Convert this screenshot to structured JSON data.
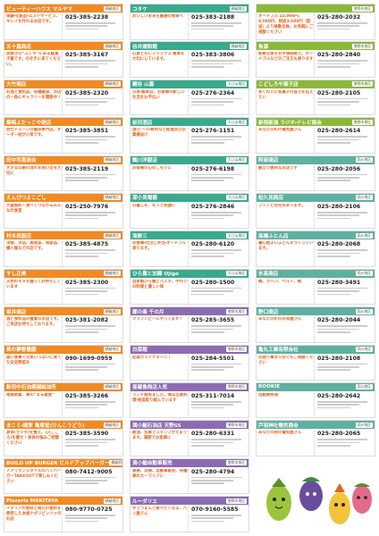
{
  "columns": [
    {
      "entries": [
        {
          "name": "ビューティーハウス マルヤマ",
          "area": "横越地区",
          "description": "体験・化粧品・エステサービス、キレイを作れるお店です。",
          "phone": "025-385-2238"
        },
        {
          "name": "五十嵐商店",
          "area": "横越地区",
          "description": "炭焼きの“ふくや”にある駄菓子屋です。のぞきに来てください。",
          "phone": "025-385-3167"
        },
        {
          "name": "大竹商店",
          "area": "横越地区",
          "description": "お酒と食料品、各種雑貨、お店の一角にギャラリーを開設中！",
          "phone": "025-385-2320"
        },
        {
          "name": "篠崎よだっこや商店",
          "area": "横越地区",
          "description": "西仕チェーンの優良専門店。オーダー枕が人気です。",
          "phone": "025-385-3851"
        },
        {
          "name": "田中写真商会",
          "area": "横越地区",
          "description": "大きな印刷の流れを祝い出を大切に",
          "phone": "025-385-2119"
        },
        {
          "name": "えんぴつよこごし",
          "area": "横越地区",
          "description": "大盛無料！食べてつながるみんなの食堂",
          "phone": "025-250-7976"
        },
        {
          "name": "村木呉服店",
          "area": "横越地区",
          "description": "洋服、洋品、美容室、和装品、婦人服などの店です。",
          "phone": "025-385-4875"
        },
        {
          "name": "すし正美",
          "area": "横越地区",
          "description": "天然のネタを握ってお待ちしています",
          "phone": "025-385-2300"
        },
        {
          "name": "坂井商店",
          "area": "横越地区",
          "description": "酒と食料品の豊富なお店です。ご来店お待ちしております。",
          "phone": "025-381-2082"
        },
        {
          "name": "葵の夢野農園",
          "area": "横越地区",
          "description": "固い食事で元気いっぱいに育てた安全野菜を",
          "phone": "090-1699-0959"
        },
        {
          "name": "新田中石油横越給油所",
          "area": "横越地区",
          "description": "地域密着、車の“まる着度”",
          "phone": "025-385-3266"
        },
        {
          "name": "まこと・嬉家 亀尊堂(けんこうどう)",
          "area": "横越地区",
          "description": "身体(カラダ)を整え、心(こころ)を癒せ！身体の悩みご相談ください",
          "phone": "025-385-3590"
        },
        {
          "name": "BUILD UP BURGER ビルドアップバーガー",
          "area": "横越地区",
          "description": "アメリカンスタイルのハンバーガーTAKEOUTで楽しみください",
          "phone": "080-7412-9005"
        },
        {
          "name": "Pizzeria MAKITAYA",
          "area": "横越地区",
          "description": "イタリアの食材と地元の食材を使用した本格ナポリピッツァのお店",
          "phone": "080-9770-0725"
        }
      ]
    },
    {
      "entries": [
        {
          "name": "コタケ",
          "area": "横越地区",
          "description": "おいしいお米を厳選の食卓へ",
          "phone": "025-383-2188"
        },
        {
          "name": "谷井建設館",
          "area": "横越地区",
          "description": "心身ともにリラックス 寛楽を大切にしています。",
          "phone": "025-383-3806"
        },
        {
          "name": "鍵谷 山嘉",
          "area": "大江山地区",
          "description": "日本・製本は、お客様の新しい生活をお手伝い",
          "phone": "025-276-2364"
        },
        {
          "name": "前田酒店",
          "area": "大江山地区",
          "description": "酒・ビール・飲料など配達及び企業様向け",
          "phone": "025-276-1151"
        },
        {
          "name": "鶴川洋服店",
          "area": "大江山地区",
          "description": "お客様の心のこもりに",
          "phone": "025-276-6198"
        },
        {
          "name": "深小見電器",
          "area": "大江山地区",
          "description": "日暮しを、もっと快適に",
          "phone": "025-276-2846"
        },
        {
          "name": "海鮮三",
          "area": "大江山地区",
          "description": "お食事・仕出し弁当・オードブル承ります。",
          "phone": "025-280-6120"
        },
        {
          "name": "ひら農と加藤 Ojigo",
          "area": "大江山地区",
          "description": "自家製ひら麺とパスタ、手作りの料理と優しい味",
          "phone": "025-280-1500"
        },
        {
          "name": "郷の楽 千の月",
          "area": "曽野木地区",
          "description": "クラフトビールやってます！",
          "phone": "025-285-3655"
        },
        {
          "name": "白菜館",
          "area": "曽野木地区",
          "description": "低価カラアゲターン！",
          "phone": "025-284-5501"
        },
        {
          "name": "亜羅魯商店人気",
          "area": "曽野木地区",
          "description": "ランチ始めました。体は当直料理・地造取り組んでいます",
          "phone": "025-311-7014"
        },
        {
          "name": "満小鮨石油店 天野SS",
          "area": "曽野木地区",
          "description": "給油、洗車でスタンプがたまります。満期でお客様に",
          "phone": "025-280-6331"
        },
        {
          "name": "満小鮨自動車販売",
          "area": "曽野木地区",
          "description": "車検、点検、自動車販売、各種車のカーライフに",
          "phone": "025-280-4794"
        },
        {
          "name": "ルーダリエ",
          "area": "曽野木地区",
          "description": "手でつまんで食べたくなる、パン屋さん",
          "phone": "070-9160-5585"
        }
      ]
    },
    {
      "entries": [
        {
          "area": "曽野木地区",
          "description": "オードブル 12,000円、8,000円、税抜3,500円（配送）より移動自負、お気軽にご相談ください",
          "phone": "025-280-2032"
        },
        {
          "name": "魚源",
          "area": "曽野木地区",
          "description": "新鮮な魚をお手頃価格で。オードブルなどのご注文も承ります",
          "phone": "025-280-2840"
        },
        {
          "name": "こどしろや菓子店",
          "area": "曽野木地区",
          "description": "多くの人に和菓子の良さを伝えたい",
          "phone": "025-280-2105"
        },
        {
          "name": "新宿新潟 ラジオ・テレビ商会",
          "area": "曽野木地区",
          "description": "あなたの町の電気屋さん",
          "phone": "025-280-2614"
        },
        {
          "name": "阿部商店",
          "area": "両川地区",
          "description": "創立で便利なお店です",
          "phone": "025-280-2056"
        },
        {
          "name": "松久民商店",
          "area": "両川地区",
          "description": "フトンと住宅もあります。",
          "phone": "025-280-2106"
        },
        {
          "name": "高橋ふとん店",
          "area": "両川地区",
          "description": "寝心地よいふとんをつくっています。",
          "phone": "025-280-2068"
        },
        {
          "name": "氷高商店",
          "area": "両川地区",
          "description": "鞄、カバン、ベルト、靴",
          "phone": "025-280-3491"
        },
        {
          "name": "野口商店",
          "area": "両川地区",
          "description": "あなたの町のお米屋さん",
          "phone": "025-280-2044"
        },
        {
          "name": "亀丸工業有限会社",
          "area": "両川地区",
          "description": "お困り事なら何でもご相談ください",
          "phone": "025-280-2108"
        },
        {
          "name": "ROOKIE",
          "area": "両川地区",
          "description": "自動車修理",
          "phone": "025-280-2642"
        },
        {
          "name": "戸祖神社電気商会",
          "area": "両川地区",
          "description": "あなたの街の電気屋さん",
          "phone": "025-280-2065"
        }
      ]
    }
  ]
}
